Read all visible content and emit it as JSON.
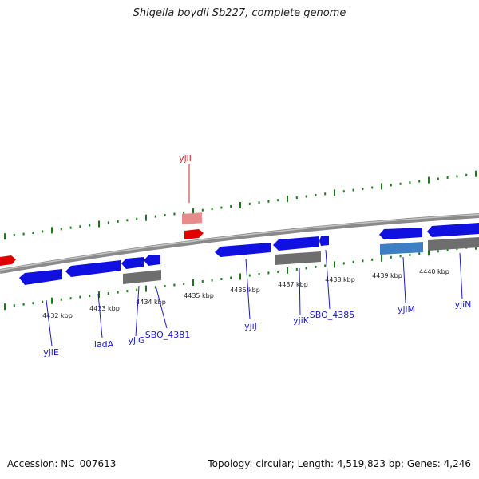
{
  "title": "Shigella boydii Sb227, complete genome",
  "footer": {
    "accession": "Accession: NC_007613",
    "topology": "Topology: circular; Length: 4,519,823 bp; Genes: 4,246"
  },
  "colors": {
    "forward_gene": "#e00000",
    "forward_pseudo": "#e98b8b",
    "reverse_gene": "#1010e0",
    "reverse_other": "#3d7fc2",
    "rna_gray": "#6e6e6e",
    "backbone": "#8a8a8a",
    "ticks": "#1a7a1a",
    "reverse_label": "#1a1acc",
    "forward_label": "#cc2222"
  },
  "kbp_labels": [
    "4432 kbp",
    "4433 kbp",
    "4434 kbp",
    "4435 kbp",
    "4436 kbp",
    "4437 kbp",
    "4438 kbp",
    "4439 kbp",
    "4440 kbp"
  ],
  "gene_labels": [
    "yjiI",
    "yjiE",
    "iadA",
    "yjiG",
    "SBO_4381",
    "yjiJ",
    "yjiK",
    "SBO_4385",
    "yjiM",
    "yjiN"
  ]
}
